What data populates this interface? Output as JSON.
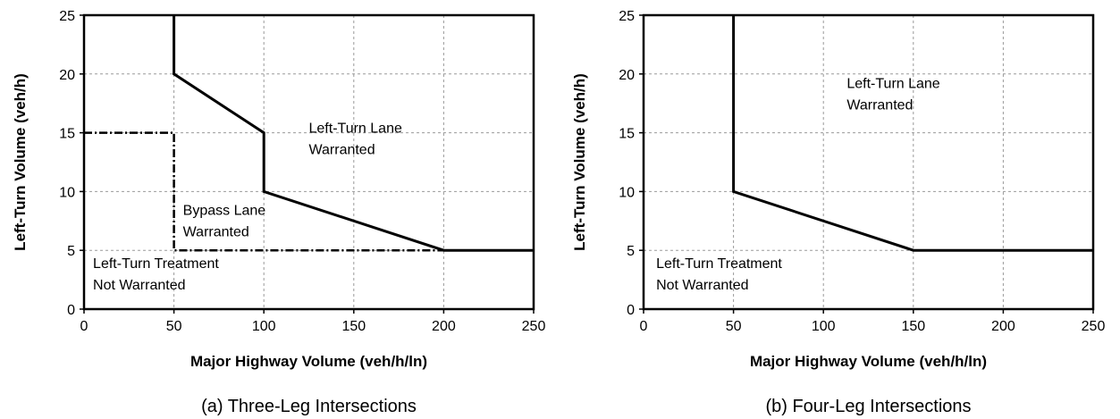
{
  "chart_data": [
    {
      "type": "line",
      "caption": "(a) Three-Leg Intersections",
      "xlabel": "Major Highway Volume (veh/h/ln)",
      "ylabel": "Left-Turn Volume (veh/h)",
      "xlim": [
        0,
        250
      ],
      "ylim": [
        0,
        25
      ],
      "xticks": [
        0,
        50,
        100,
        150,
        200,
        250
      ],
      "yticks": [
        0,
        5,
        10,
        15,
        20,
        25
      ],
      "grid": true,
      "series": [
        {
          "style": "solid",
          "x": [
            50,
            50,
            100,
            100,
            200,
            250
          ],
          "y": [
            25,
            20,
            15,
            10,
            5,
            5
          ]
        },
        {
          "style": "dash-dot",
          "x": [
            0,
            50,
            50,
            200
          ],
          "y": [
            15,
            15,
            5,
            5
          ]
        }
      ],
      "annotations": [
        {
          "lines": [
            "Left-Turn Lane",
            "Warranted"
          ],
          "x": 125,
          "y": 15
        },
        {
          "lines": [
            "Bypass Lane",
            "Warranted"
          ],
          "x": 55,
          "y": 8
        },
        {
          "lines": [
            "Left-Turn Treatment",
            "Not Warranted"
          ],
          "x": 5,
          "y": 3.5
        }
      ]
    },
    {
      "type": "line",
      "caption": "(b) Four-Leg Intersections",
      "xlabel": "Major Highway Volume (veh/h/ln)",
      "ylabel": "Left-Turn Volume (veh/h)",
      "xlim": [
        0,
        250
      ],
      "ylim": [
        0,
        25
      ],
      "xticks": [
        0,
        50,
        100,
        150,
        200,
        250
      ],
      "yticks": [
        0,
        5,
        10,
        15,
        20,
        25
      ],
      "grid": true,
      "series": [
        {
          "style": "solid",
          "x": [
            50,
            50,
            150,
            250
          ],
          "y": [
            25,
            10,
            5,
            5
          ]
        }
      ],
      "annotations": [
        {
          "lines": [
            "Left-Turn Lane",
            "Warranted"
          ],
          "x": 113,
          "y": 18.8
        },
        {
          "lines": [
            "Left-Turn Treatment",
            "Not Warranted"
          ],
          "x": 7,
          "y": 3.5
        }
      ]
    }
  ]
}
